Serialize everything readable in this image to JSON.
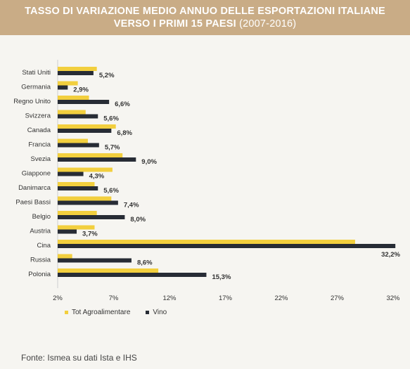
{
  "header": {
    "title_line1": "TASSO DI VARIAZIONE MEDIO ANNUO DELLE ESPORTAZIONI ITALIANE",
    "title_line2": "VERSO I PRIMI 15 PAESI",
    "period": "(2007-2016)"
  },
  "legend": {
    "tot_label": "Tot Agroalimentare",
    "vino_label": "Vino"
  },
  "source": "Fonte: Ismea su dati Ista e IHS",
  "colors": {
    "tot": "#f2cf3e",
    "vino": "#272c35",
    "header_bg": "#c9ac86"
  },
  "chart_data": {
    "type": "bar",
    "orientation": "horizontal",
    "categories": [
      "Stati Uniti",
      "Germania",
      "Regno Unito",
      "Svizzera",
      "Canada",
      "Francia",
      "Svezia",
      "Giappone",
      "Danimarca",
      "Paesi Bassi",
      "Belgio",
      "Austria",
      "Cina",
      "Russia",
      "Polonia"
    ],
    "series": [
      {
        "name": "Tot Agroalimentare",
        "values": [
          5.5,
          3.8,
          4.8,
          4.5,
          7.2,
          4.7,
          7.8,
          6.9,
          5.3,
          6.8,
          5.5,
          5.3,
          28.6,
          3.3,
          11.0
        ]
      },
      {
        "name": "Vino",
        "values": [
          5.2,
          2.9,
          6.6,
          5.6,
          6.8,
          5.7,
          9.0,
          4.3,
          5.6,
          7.4,
          8.0,
          3.7,
          32.2,
          8.6,
          15.3
        ]
      }
    ],
    "value_labels": [
      "5,2%",
      "2,9%",
      "6,6%",
      "5,6%",
      "6,8%",
      "5,7%",
      "9,0%",
      "4,3%",
      "5,6%",
      "7,4%",
      "8,0%",
      "3,7%",
      "32,2%",
      "8,6%",
      "15,3%"
    ],
    "x_ticks": [
      2,
      7,
      12,
      17,
      22,
      27,
      32
    ],
    "x_tick_labels": [
      "2%",
      "7%",
      "12%",
      "17%",
      "22%",
      "27%",
      "32%"
    ],
    "xlim": [
      2,
      32
    ],
    "grid": false,
    "legend_position": "bottom-left"
  }
}
